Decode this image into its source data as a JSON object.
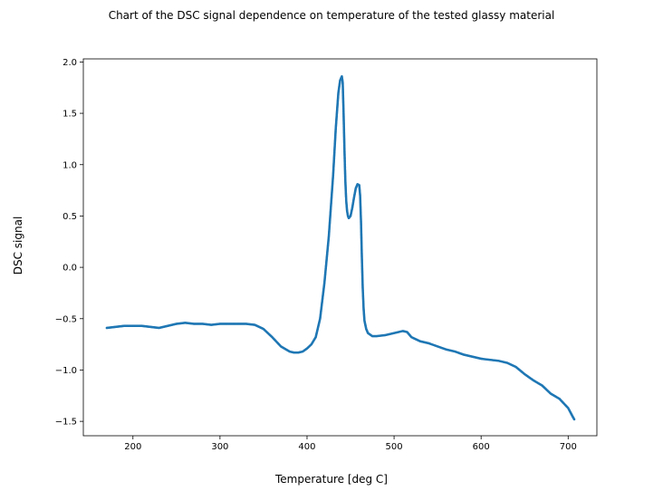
{
  "chart_data": {
    "type": "scatter",
    "title": "Chart of the DSC signal dependence on temperature of the tested glassy material",
    "xlabel": "Temperature [deg C]",
    "ylabel": "DSC signal",
    "xlim": [
      143,
      733
    ],
    "ylim": [
      -1.64,
      2.03
    ],
    "xticks": [
      200,
      300,
      400,
      500,
      600,
      700
    ],
    "xtick_labels": [
      "200",
      "300",
      "400",
      "500",
      "600",
      "700"
    ],
    "yticks": [
      -1.5,
      -1.0,
      -0.5,
      0.0,
      0.5,
      1.0,
      1.5,
      2.0
    ],
    "ytick_labels": [
      "−1.5",
      "−1.0",
      "−0.5",
      "0.0",
      "0.5",
      "1.0",
      "1.5",
      "2.0"
    ],
    "grid": false,
    "marker_color": "#1f77b4",
    "series": [
      {
        "x": [
          170,
          180,
          190,
          200,
          210,
          220,
          230,
          240,
          250,
          260,
          270,
          280,
          290,
          300,
          310,
          320,
          330,
          340,
          350,
          360,
          370,
          380,
          385,
          390,
          395,
          400,
          405,
          410,
          415,
          420,
          425,
          430,
          433,
          436,
          438,
          440,
          441,
          442,
          443,
          444,
          445,
          446,
          447,
          448,
          450,
          452,
          454,
          456,
          458,
          460,
          461,
          462,
          463,
          464,
          465,
          466,
          468,
          470,
          475,
          480,
          490,
          500,
          510,
          515,
          520,
          530,
          540,
          550,
          560,
          570,
          580,
          590,
          600,
          610,
          620,
          630,
          640,
          650,
          660,
          670,
          680,
          690,
          700,
          705,
          707
        ],
        "y": [
          -0.59,
          -0.58,
          -0.57,
          -0.57,
          -0.57,
          -0.58,
          -0.59,
          -0.57,
          -0.55,
          -0.54,
          -0.55,
          -0.55,
          -0.56,
          -0.55,
          -0.55,
          -0.55,
          -0.55,
          -0.56,
          -0.6,
          -0.68,
          -0.77,
          -0.82,
          -0.83,
          -0.83,
          -0.82,
          -0.79,
          -0.75,
          -0.68,
          -0.5,
          -0.15,
          0.3,
          0.9,
          1.35,
          1.7,
          1.82,
          1.86,
          1.8,
          1.5,
          1.15,
          0.85,
          0.65,
          0.55,
          0.5,
          0.48,
          0.5,
          0.58,
          0.68,
          0.77,
          0.81,
          0.8,
          0.7,
          0.45,
          0.1,
          -0.2,
          -0.4,
          -0.52,
          -0.6,
          -0.64,
          -0.67,
          -0.67,
          -0.66,
          -0.64,
          -0.62,
          -0.63,
          -0.68,
          -0.72,
          -0.74,
          -0.77,
          -0.8,
          -0.82,
          -0.85,
          -0.87,
          -0.89,
          -0.9,
          -0.91,
          -0.93,
          -0.97,
          -1.04,
          -1.1,
          -1.15,
          -1.23,
          -1.28,
          -1.37,
          -1.45,
          -1.48
        ]
      }
    ]
  }
}
